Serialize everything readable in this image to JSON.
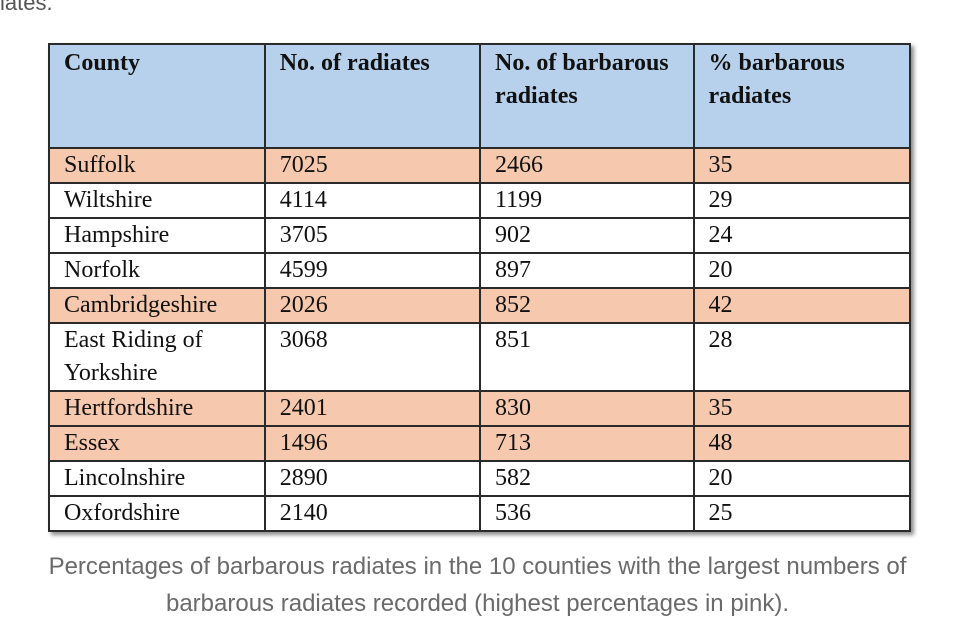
{
  "top_fragment": "iates.",
  "table": {
    "headers": [
      "County",
      "No. of radiates",
      "No. of barbarous radiates",
      "% barbarous radiates"
    ],
    "highlight_color": "#f6c9ae",
    "header_color": "#b7d1ec",
    "rows": [
      {
        "county": "Suffolk",
        "radiates": "7025",
        "barbarous": "2466",
        "percent": "35",
        "highlight": true
      },
      {
        "county": "Wiltshire",
        "radiates": "4114",
        "barbarous": "1199",
        "percent": "29",
        "highlight": false
      },
      {
        "county": "Hampshire",
        "radiates": "3705",
        "barbarous": "902",
        "percent": "24",
        "highlight": false
      },
      {
        "county": "Norfolk",
        "radiates": "4599",
        "barbarous": "897",
        "percent": "20",
        "highlight": false
      },
      {
        "county": "Cambridgeshire",
        "radiates": "2026",
        "barbarous": "852",
        "percent": "42",
        "highlight": true
      },
      {
        "county": "East Riding of Yorkshire",
        "radiates": "3068",
        "barbarous": "851",
        "percent": "28",
        "highlight": false
      },
      {
        "county": "Hertfordshire",
        "radiates": "2401",
        "barbarous": "830",
        "percent": "35",
        "highlight": true
      },
      {
        "county": "Essex",
        "radiates": "1496",
        "barbarous": "713",
        "percent": "48",
        "highlight": true
      },
      {
        "county": "Lincolnshire",
        "radiates": "2890",
        "barbarous": "582",
        "percent": "20",
        "highlight": false
      },
      {
        "county": "Oxfordshire",
        "radiates": "2140",
        "barbarous": "536",
        "percent": "25",
        "highlight": false
      }
    ]
  },
  "caption": "Percentages of barbarous radiates in the 10 counties with the largest numbers of barbarous radiates recorded (highest percentages in pink)."
}
